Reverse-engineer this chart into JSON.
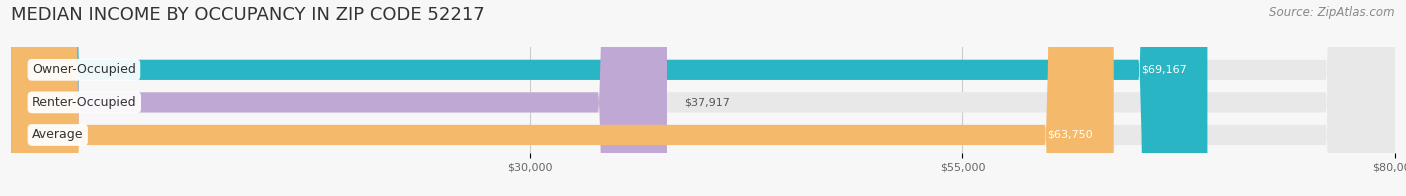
{
  "title": "MEDIAN INCOME BY OCCUPANCY IN ZIP CODE 52217",
  "source": "Source: ZipAtlas.com",
  "categories": [
    "Owner-Occupied",
    "Renter-Occupied",
    "Average"
  ],
  "values": [
    69167,
    37917,
    63750
  ],
  "labels": [
    "$69,167",
    "$37,917",
    "$63,750"
  ],
  "bar_colors": [
    "#29b5c3",
    "#c0a8d4",
    "#f5b96b"
  ],
  "bar_bg_color": "#e8e8e8",
  "xmin": 0,
  "xmax": 80000,
  "xticks": [
    30000,
    55000,
    80000
  ],
  "xtick_labels": [
    "$30,000",
    "$55,000",
    "$80,000"
  ],
  "title_fontsize": 13,
  "source_fontsize": 8.5,
  "label_fontsize": 8,
  "category_fontsize": 9,
  "background_color": "#f7f7f7",
  "label_color": "#ffffff",
  "value_label_inside": [
    true,
    false,
    true
  ]
}
